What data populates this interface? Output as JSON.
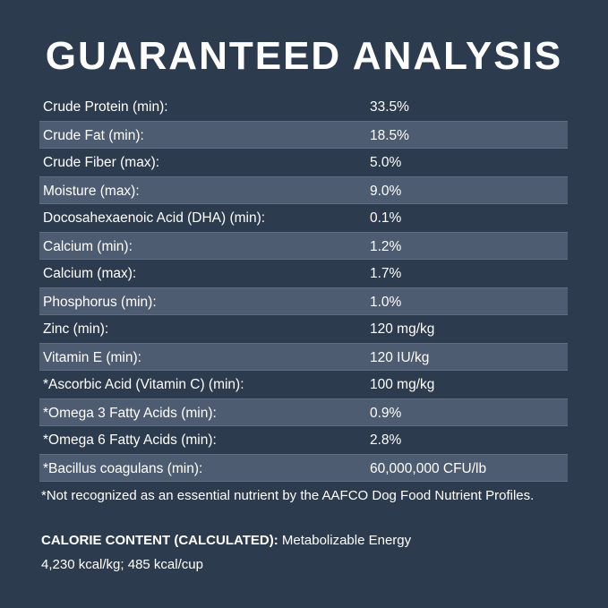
{
  "title": "GUARANTEED ANALYSIS",
  "table": {
    "rows": [
      [
        "Crude Protein (min):",
        "33.5%"
      ],
      [
        "Crude Fat (min):",
        "18.5%"
      ],
      [
        "Crude Fiber (max):",
        "5.0%"
      ],
      [
        "Moisture (max):",
        "9.0%"
      ],
      [
        "Docosahexaenoic Acid (DHA) (min):",
        "0.1%"
      ],
      [
        "Calcium (min):",
        "1.2%"
      ],
      [
        "Calcium (max):",
        "1.7%"
      ],
      [
        "Phosphorus (min):",
        "1.0%"
      ],
      [
        "Zinc (min):",
        "120 mg/kg"
      ],
      [
        "Vitamin E (min):",
        "120 IU/kg"
      ],
      [
        "*Ascorbic Acid (Vitamin C) (min):",
        "100 mg/kg"
      ],
      [
        "*Omega 3 Fatty Acids (min):",
        "0.9%"
      ],
      [
        "*Omega 6 Fatty Acids (min):",
        "2.8%"
      ],
      [
        "*Bacillus coagulans (min):",
        "60,000,000 CFU/lb"
      ]
    ]
  },
  "footnote": "*Not recognized as an essential nutrient by the AAFCO Dog Food Nutrient Profiles.",
  "calorie": {
    "label": "CALORIE CONTENT (CALCULATED):",
    "text": "Metabolizable Energy",
    "line2": "4,230 kcal/kg; 485 kcal/cup"
  }
}
